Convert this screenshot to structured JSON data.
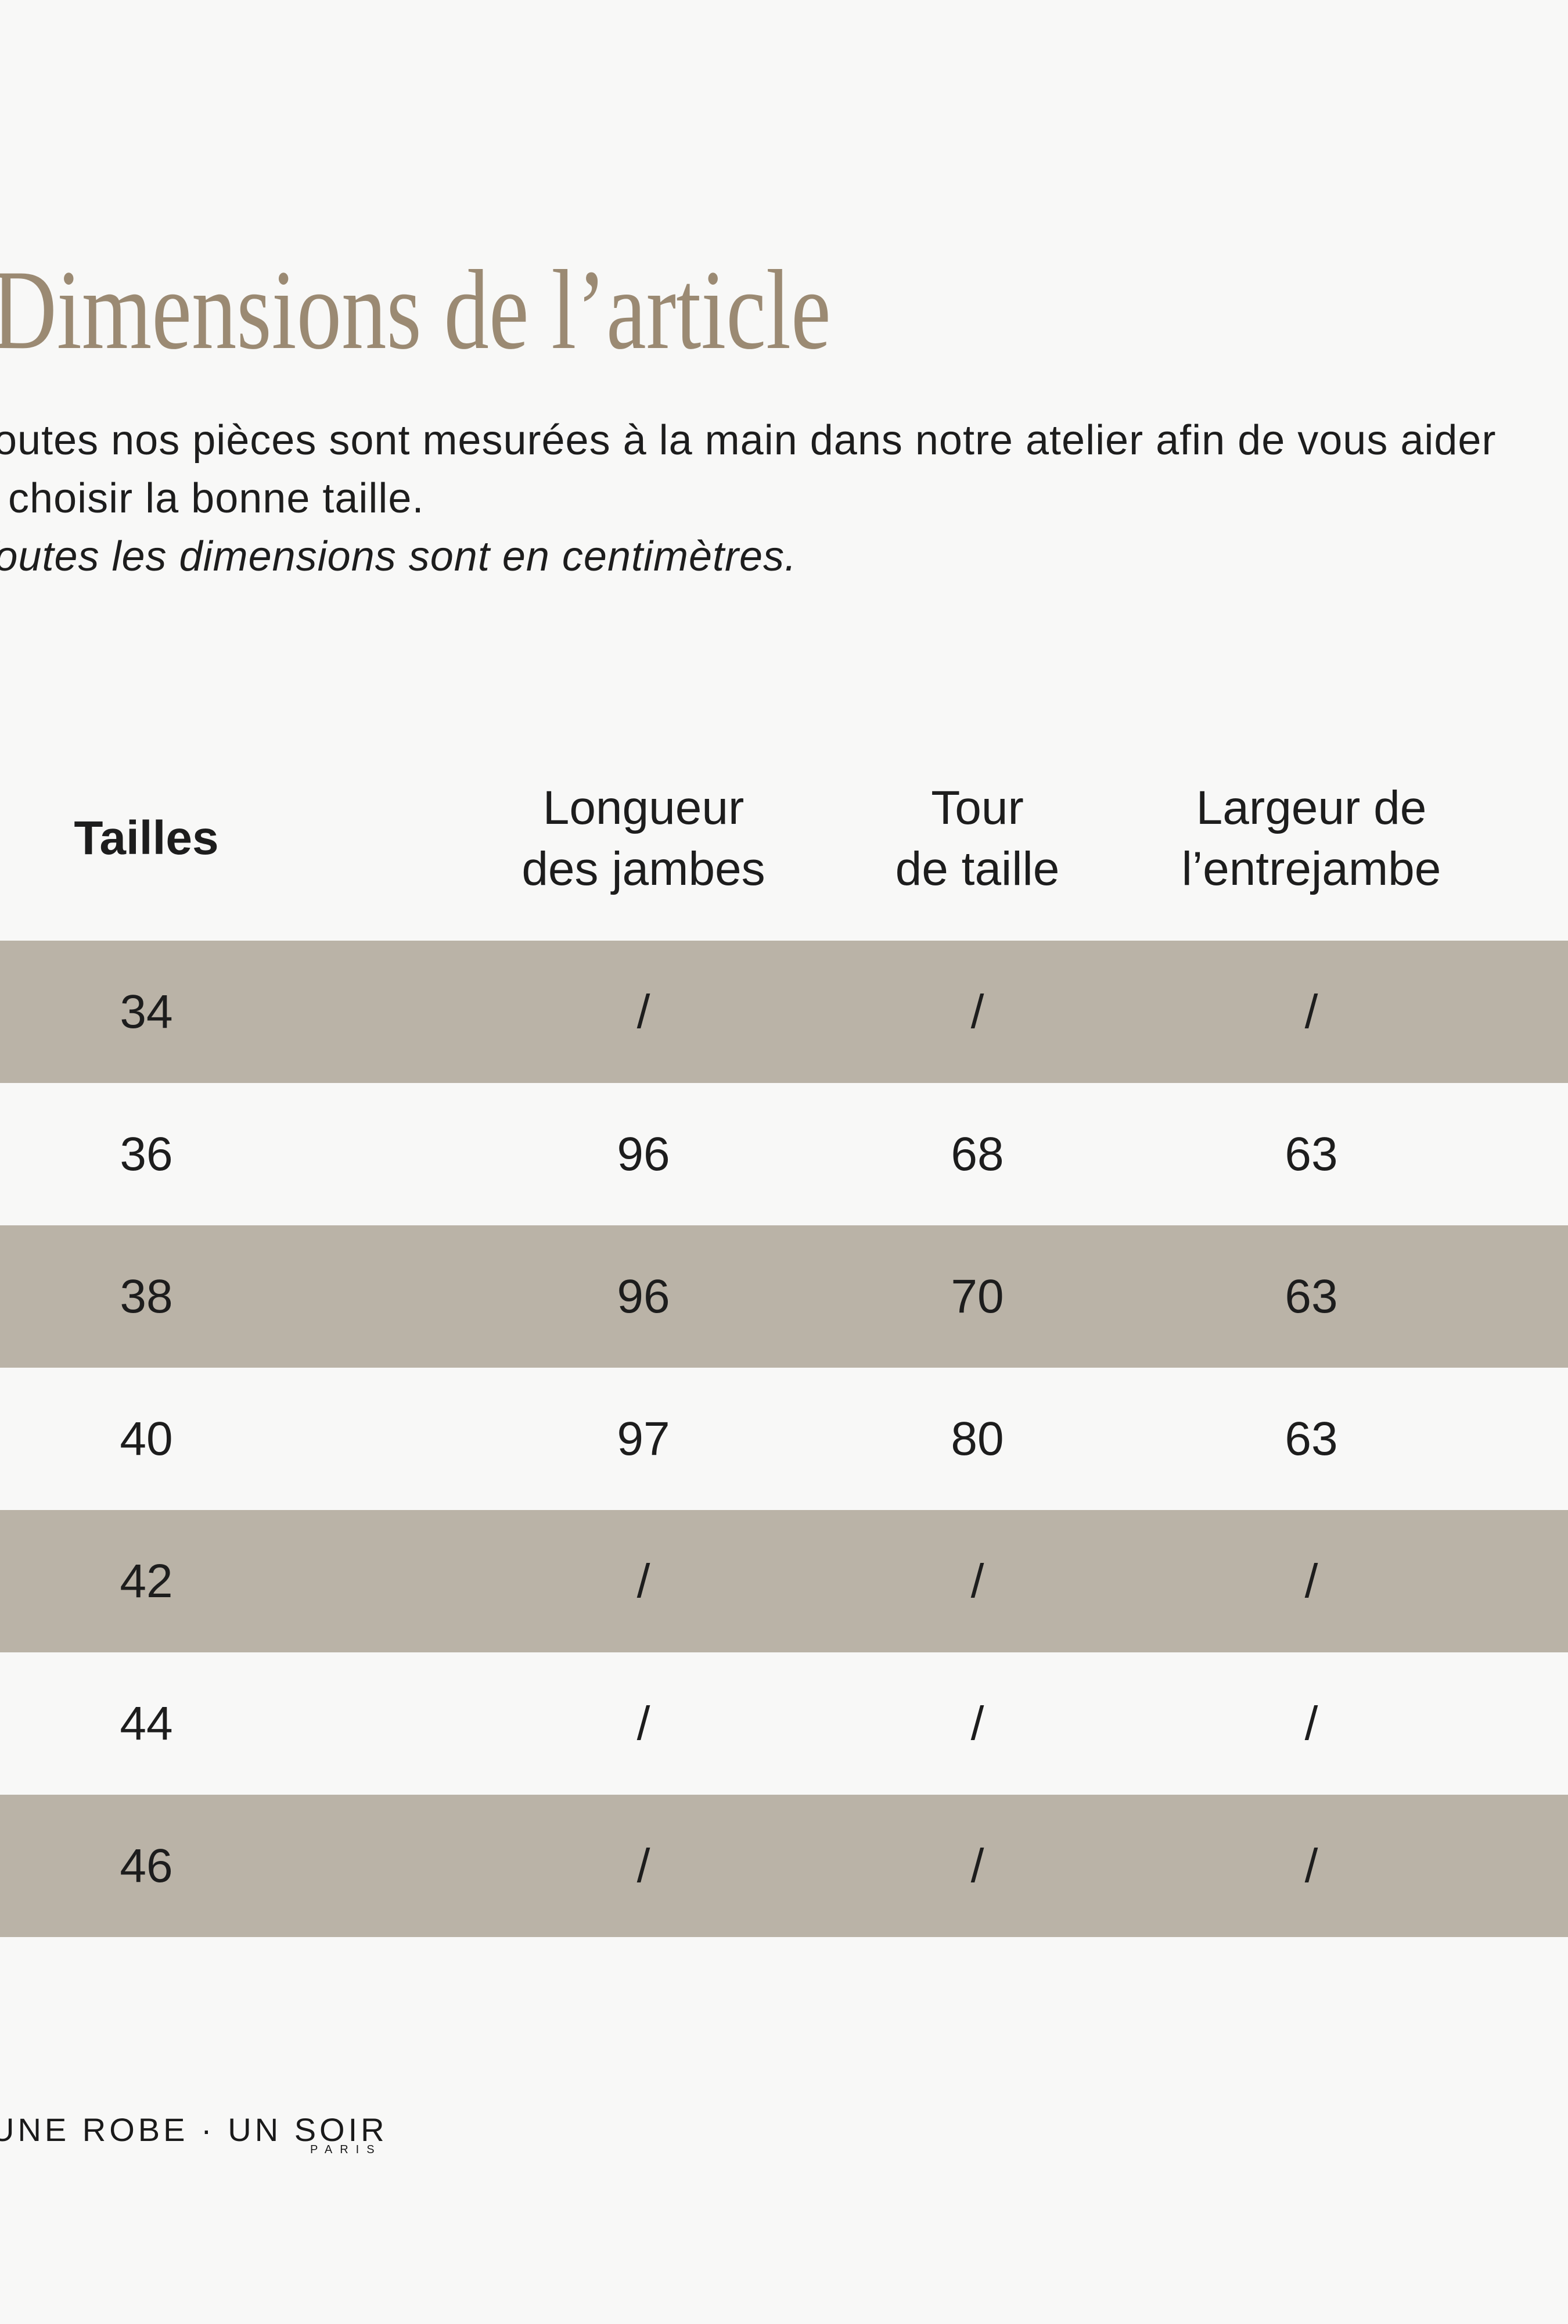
{
  "page": {
    "background": "#f8f8f7",
    "stripe_color": "#bab3a7",
    "title_color": "#9b8a73",
    "text_color": "#1d1d1d"
  },
  "header": {
    "title": "Dimensions de l’article"
  },
  "intro": {
    "line1": "Toutes nos pièces sont mesurées à la main dans notre atelier afin de vous aider",
    "line2": "à choisir la bonne taille.",
    "note": "Toutes les dimensions sont en centimètres."
  },
  "table": {
    "headers": [
      {
        "line1": "Tailles",
        "line2": ""
      },
      {
        "line1": "Longueur",
        "line2": "des jambes"
      },
      {
        "line1": "Tour",
        "line2": "de taille"
      },
      {
        "line1": "Largeur de",
        "line2": "l’entrejambe"
      }
    ],
    "rows": [
      {
        "size": "34",
        "values": [
          "/",
          "/",
          "/"
        ]
      },
      {
        "size": "36",
        "values": [
          "96",
          "68",
          "63"
        ]
      },
      {
        "size": "38",
        "values": [
          "96",
          "70",
          "63"
        ]
      },
      {
        "size": "40",
        "values": [
          "97",
          "80",
          "63"
        ]
      },
      {
        "size": "42",
        "values": [
          "/",
          "/",
          "/"
        ]
      },
      {
        "size": "44",
        "values": [
          "/",
          "/",
          "/"
        ]
      },
      {
        "size": "46",
        "values": [
          "/",
          "/",
          "/"
        ]
      }
    ]
  },
  "footer": {
    "brand": "UNE ROBE · UN SOIR",
    "city": "PARIS"
  }
}
